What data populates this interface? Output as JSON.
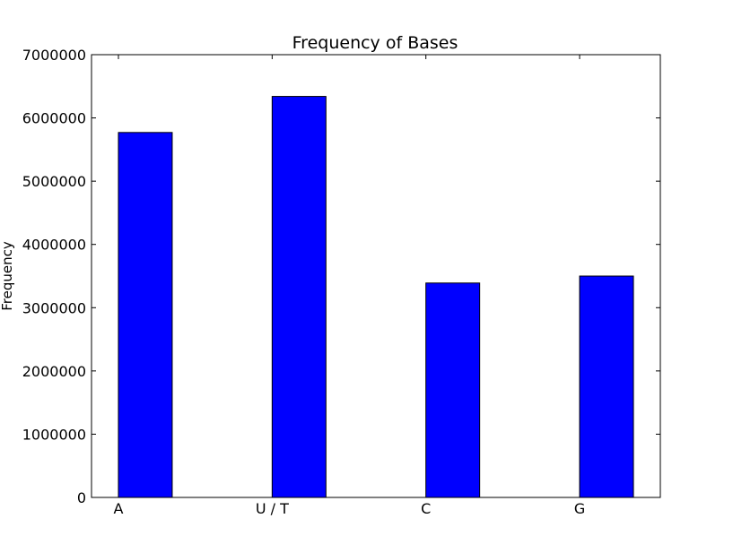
{
  "chart_data": {
    "type": "bar",
    "title": "Frequency of Bases",
    "xlabel": "",
    "ylabel": "Frequency",
    "categories": [
      "A",
      "U / T",
      "C",
      "G"
    ],
    "values": [
      5770000,
      6340000,
      3390000,
      3500000
    ],
    "ylim": [
      0,
      7000000
    ],
    "yticks": [
      0,
      1000000,
      2000000,
      3000000,
      4000000,
      5000000,
      6000000,
      7000000
    ],
    "ytick_labels": [
      "0",
      "1000000",
      "2000000",
      "3000000",
      "4000000",
      "5000000",
      "6000000",
      "7000000"
    ],
    "bar_color": "#0000ff",
    "grid": false,
    "legend": "none"
  }
}
